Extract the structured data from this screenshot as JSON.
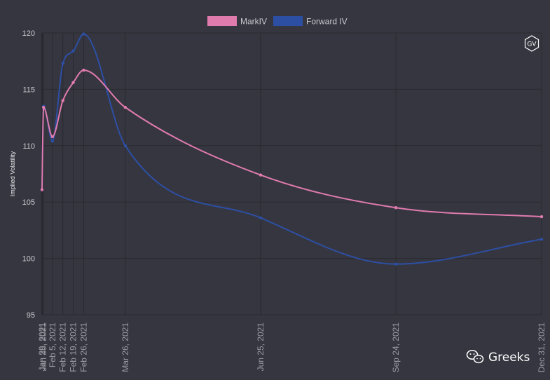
{
  "chart_data": {
    "type": "line",
    "title": "",
    "xlabel": "",
    "ylabel": "Implied Volatility",
    "ylim": [
      95,
      120
    ],
    "yticks": [
      95,
      100,
      105,
      110,
      115,
      120
    ],
    "x": [
      "Jan 29, 2021",
      "Jan 30, 2021",
      "Feb 5, 2021",
      "Feb 12, 2021",
      "Feb 19, 2021",
      "Feb 26, 2021",
      "Mar 26, 2021",
      "Jun 25, 2021",
      "Sep 24, 2021",
      "Dec 31, 2021"
    ],
    "x_labels": [
      "Jan 29, 2021",
      "Jan 30, 2021",
      "Feb 5, 2021",
      "Feb 12, 2021",
      "Feb 19, 2021",
      "Feb 26, 2021",
      "Mar 26, 2021",
      "Jun 25, 2021",
      "Sep 24, 2021",
      "Dec 31, 2021"
    ],
    "grid": true,
    "legend_position": "top",
    "series": [
      {
        "name": "MarkIV",
        "color": "#e07bae",
        "values": [
          106.1,
          113.4,
          110.8,
          114.0,
          115.6,
          116.7,
          113.4,
          107.4,
          104.5,
          103.7
        ]
      },
      {
        "name": "Forward IV",
        "color": "#2d4fa3",
        "values": [
          106.1,
          113.5,
          110.4,
          117.3,
          118.4,
          119.9,
          110.0,
          103.6,
          99.5,
          101.7
        ]
      }
    ]
  },
  "badge": {
    "label": "GV"
  },
  "watermark": {
    "icon": "wechat-icon",
    "text": "Greeks"
  }
}
